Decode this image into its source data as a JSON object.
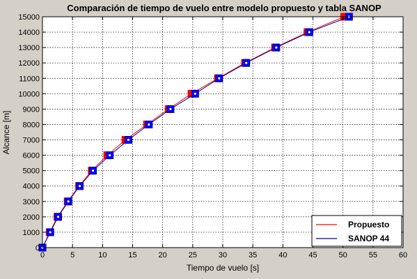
{
  "chart_data": {
    "type": "line",
    "title": "Comparación de tiempo de vuelo entre modelo propuesto y tabla SANOP",
    "xlabel": "Tiempo de vuelo [s]",
    "ylabel": "Alcance [m]",
    "xlim": [
      0,
      60
    ],
    "ylim": [
      0,
      15000
    ],
    "xticks": [
      0,
      5,
      10,
      15,
      20,
      25,
      30,
      35,
      40,
      45,
      50,
      55,
      60
    ],
    "yticks": [
      0,
      1000,
      2000,
      3000,
      4000,
      5000,
      6000,
      7000,
      8000,
      9000,
      10000,
      11000,
      12000,
      13000,
      14000,
      15000
    ],
    "grid": true,
    "legend_position": "bottom-right",
    "series": [
      {
        "name": "Propuesto",
        "color": "#ff0000",
        "marker": "square",
        "marker_face": "#ff0000",
        "x": [
          0,
          1.2,
          2.5,
          4.2,
          6.1,
          8.2,
          10.8,
          13.8,
          17.4,
          21.0,
          24.8,
          29.2,
          33.7,
          38.7,
          44.1,
          50.2
        ],
        "y": [
          0,
          1000,
          2000,
          3000,
          4000,
          5000,
          6000,
          7000,
          8000,
          9000,
          10000,
          11000,
          12000,
          13000,
          14000,
          15000
        ]
      },
      {
        "name": "SANOP 44",
        "color": "#0000a0",
        "marker": "square",
        "marker_face": "#0000ff",
        "x": [
          0,
          1.3,
          2.6,
          4.3,
          6.2,
          8.4,
          11.2,
          14.3,
          17.7,
          21.3,
          25.4,
          29.4,
          33.9,
          38.9,
          44.4,
          51.0
        ],
        "y": [
          0,
          1000,
          2000,
          3000,
          4000,
          5000,
          6000,
          7000,
          8000,
          9000,
          10000,
          11000,
          12000,
          13000,
          14000,
          15000
        ]
      }
    ]
  }
}
